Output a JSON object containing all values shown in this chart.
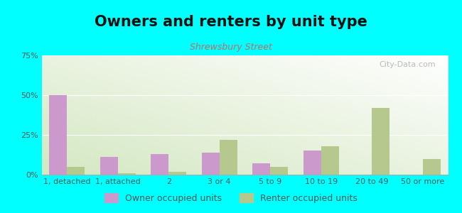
{
  "title": "Owners and renters by unit type",
  "subtitle": "Shrewsbury Street",
  "categories": [
    "1, detached",
    "1, attached",
    "2",
    "3 or 4",
    "5 to 9",
    "10 to 19",
    "20 to 49",
    "50 or more"
  ],
  "owner_values": [
    50,
    11,
    13,
    14,
    7,
    15,
    0,
    0
  ],
  "renter_values": [
    5,
    1,
    2,
    22,
    5,
    18,
    42,
    10
  ],
  "owner_color": "#cc99cc",
  "renter_color": "#b5c98e",
  "ylim": [
    0,
    75
  ],
  "yticks": [
    0,
    25,
    50,
    75
  ],
  "ytick_labels": [
    "0%",
    "25%",
    "50%",
    "75%"
  ],
  "bg_color_bottom_left": "#d4e8c2",
  "bg_color_top_right": "#ffffff",
  "outer_background": "#00ffff",
  "bar_width": 0.35,
  "title_fontsize": 15,
  "subtitle_fontsize": 9,
  "tick_fontsize": 8,
  "legend_fontsize": 9,
  "title_color": "#111111",
  "subtitle_color": "#cc6666",
  "tick_color": "#555555",
  "watermark_text": "City-Data.com",
  "watermark_color": "#aaaaaa",
  "legend_owner": "Owner occupied units",
  "legend_renter": "Renter occupied units"
}
